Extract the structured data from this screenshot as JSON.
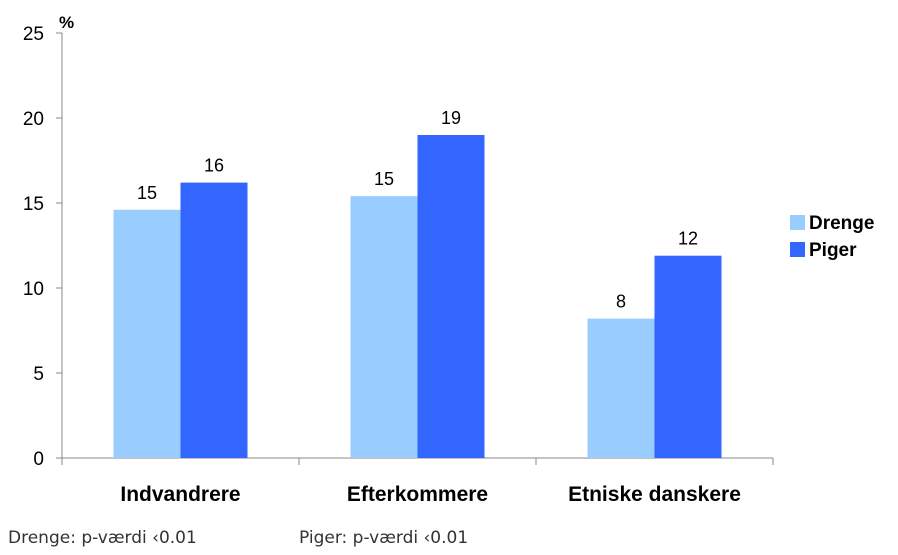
{
  "chart_data": {
    "type": "bar",
    "categories": [
      "Indvandrere",
      "Efterkommere",
      "Etniske danskere"
    ],
    "series": [
      {
        "name": "Drenge",
        "values": [
          14.6,
          15.4,
          8.2
        ],
        "labels": [
          "15",
          "15",
          "8"
        ],
        "color": "#99CCFF"
      },
      {
        "name": "Piger",
        "values": [
          16.2,
          19.0,
          11.9
        ],
        "labels": [
          "16",
          "19",
          "12"
        ],
        "color": "#3366FF"
      }
    ],
    "ylabel": "%",
    "ylim": [
      0,
      25
    ],
    "yticks": [
      "0",
      "5",
      "10",
      "15",
      "20",
      "25"
    ],
    "grid": false,
    "legend_position": "right"
  },
  "footnotes": {
    "drenge": "Drenge: p-værdi ‹0.01",
    "piger": "Piger: p-værdi ‹0.01"
  }
}
